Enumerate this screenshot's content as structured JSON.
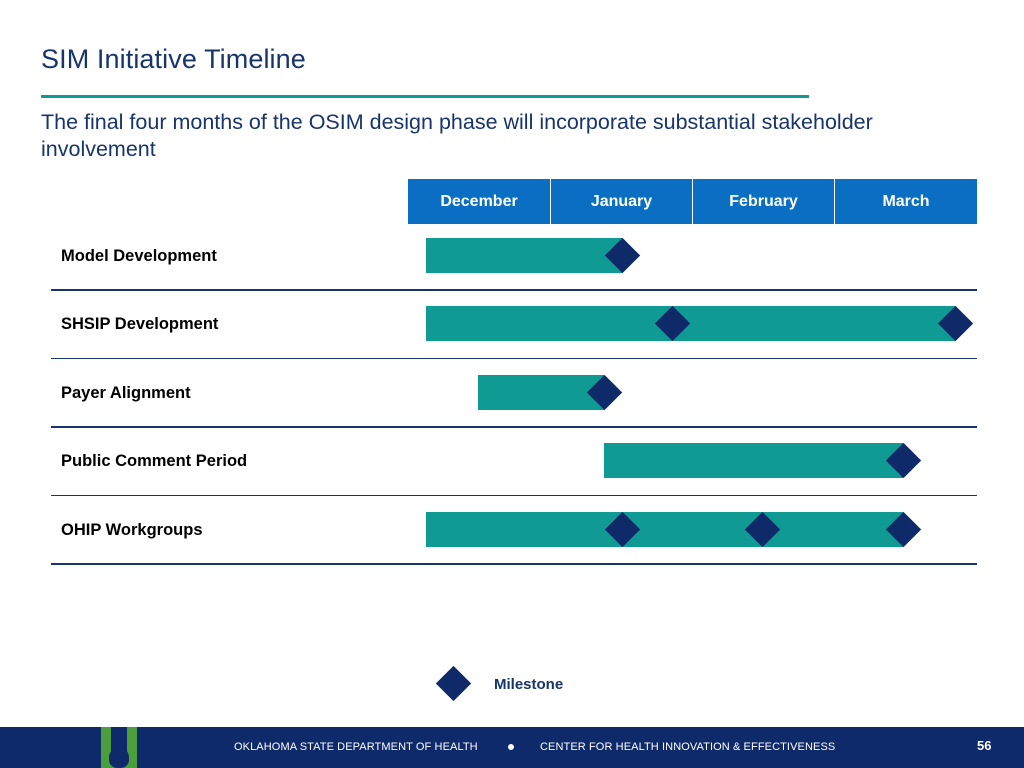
{
  "title": "SIM Initiative Timeline",
  "subtitle": "The final four months of the OSIM design phase will incorporate substantial stakeholder involvement",
  "timeline": {
    "months": [
      "December",
      "January",
      "February",
      "March"
    ],
    "rows": [
      {
        "label": "Model Development",
        "start": 0.13,
        "end": 1.51,
        "milestones": [
          1.51
        ]
      },
      {
        "label": "SHSIP Development",
        "start": 0.13,
        "end": 3.85,
        "milestones": [
          1.86,
          3.85
        ]
      },
      {
        "label": "Payer Alignment",
        "start": 0.49,
        "end": 1.38,
        "milestones": [
          1.38
        ]
      },
      {
        "label": "Public Comment Period",
        "start": 1.38,
        "end": 3.48,
        "milestones": [
          3.48
        ]
      },
      {
        "label": "OHIP Workgroups",
        "start": 0.13,
        "end": 3.48,
        "milestones": [
          1.51,
          2.49,
          3.48
        ]
      }
    ]
  },
  "legend": {
    "label": "Milestone"
  },
  "footer": {
    "left_text": "OKLAHOMA STATE DEPARTMENT OF HEALTH",
    "right_text": "CENTER FOR HEALTH INNOVATION & EFFECTIVENESS",
    "page_number": "56"
  },
  "colors": {
    "bar": "#0f9a93",
    "milestone": "#0f2a68",
    "header": "#0a6fc2",
    "footer": "#0e2a6a"
  }
}
